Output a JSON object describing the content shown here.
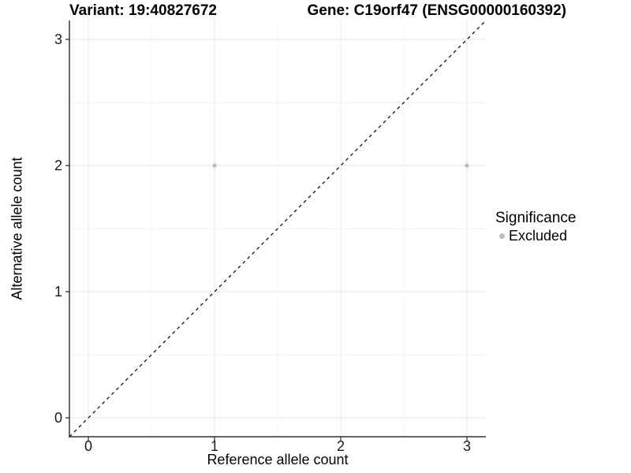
{
  "titles": {
    "left": "Variant: 19:40827672",
    "right": "Gene: C19orf47 (ENSG00000160392)"
  },
  "chart_data": {
    "type": "scatter",
    "xlabel": "Reference allele count",
    "ylabel": "Alternative allele count",
    "xlim": [
      -0.15,
      3.15
    ],
    "ylim": [
      -0.15,
      3.15
    ],
    "xticks": [
      0,
      1,
      2,
      3
    ],
    "yticks": [
      0,
      1,
      2,
      3
    ],
    "x_minor_ticks": [
      0.5,
      1.5,
      2.5
    ],
    "y_minor_ticks": [
      0.5,
      1.5,
      2.5
    ],
    "grid": "major-and-minor",
    "series": [
      {
        "name": "Excluded",
        "color": "#bdbdbd",
        "points": [
          {
            "x": 1,
            "y": 2
          },
          {
            "x": 3,
            "y": 2
          }
        ]
      }
    ],
    "identity_line": {
      "description": "y = x diagonal reference line",
      "style": "dashed",
      "color": "#000000"
    },
    "legend": {
      "title": "Significance",
      "position": "right",
      "items": [
        {
          "label": "Excluded",
          "color": "#bdbdbd"
        }
      ]
    }
  },
  "colors": {
    "background": "#ffffff",
    "grid_major": "#e6e6e6",
    "grid_minor": "#f3f3f3",
    "axis_line": "#333333",
    "tick_mark": "#333333",
    "tick_label": "#1a1a1a",
    "point": "#bdbdbd",
    "dashed_line": "#000000"
  }
}
